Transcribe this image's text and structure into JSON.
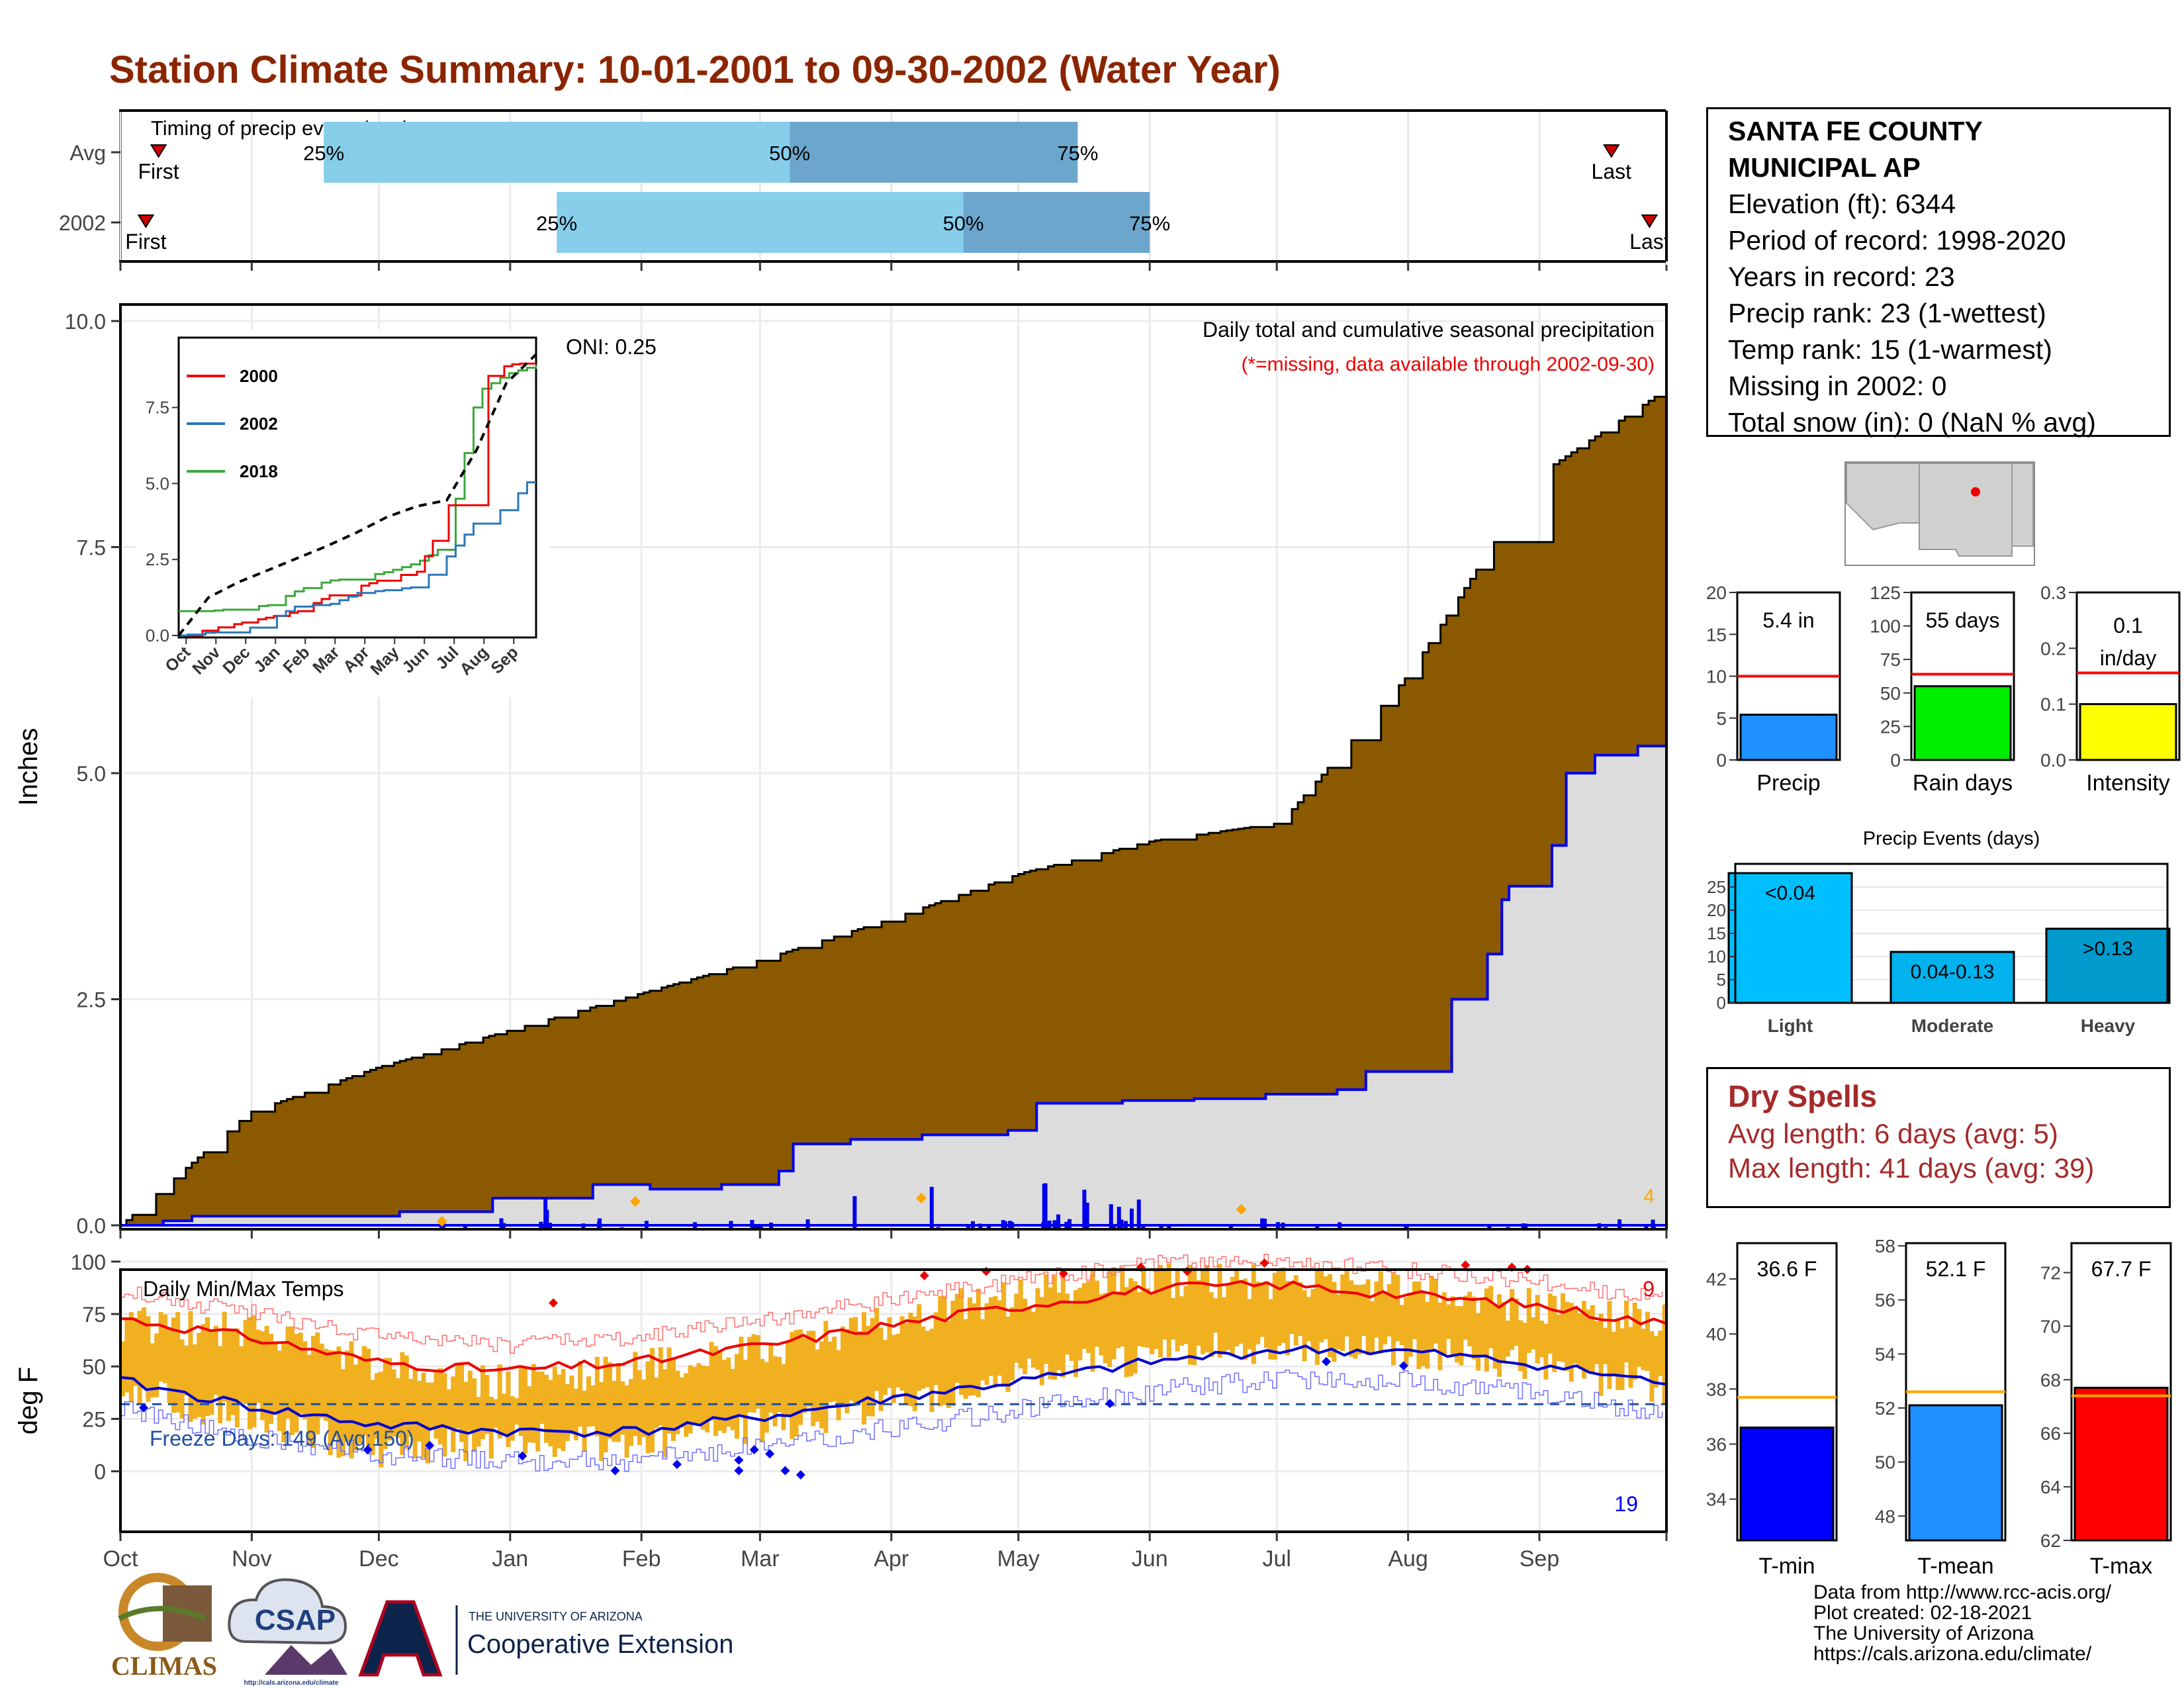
{
  "title": "Station Climate Summary: 10-01-2001 to 09-30-2002 (Water Year)",
  "station": {
    "name_line1": "SANTA FE COUNTY",
    "name_line2": "MUNICIPAL AP",
    "elevation": "Elevation (ft): 6344",
    "period": "Period of record: 1998-2020",
    "years": "Years in record: 23",
    "precip_rank": "Precip rank: 23 (1-wettest)",
    "temp_rank": "Temp rank: 15 (1-warmest)",
    "missing": "Missing in 2002: 0",
    "snow": "Total snow (in): 0 (NaN % avg)"
  },
  "timing": {
    "label": "Timing of precip events/totals",
    "rows": [
      "Avg",
      "2002"
    ],
    "first": "First",
    "last": "Last",
    "p25": "25%",
    "p50": "50%",
    "p75": "75%",
    "colors": {
      "light": "#87ceeb",
      "dark": "#6ca6cd",
      "marker": "#cc0000"
    }
  },
  "precip_panel": {
    "ylabel": "Inches",
    "yticks": [
      "0.0",
      "2.5",
      "5.0",
      "7.5",
      "10.0"
    ],
    "ylim": [
      0,
      10
    ],
    "caption": "Daily total and cumulative seasonal precipitation",
    "note": "(*=missing, data available through 2002-09-30)",
    "oni": "ONI: 0.25",
    "extreme_count": "4",
    "colors": {
      "avg_fill": "#8b5a00",
      "year_fill": "#dcdcdc",
      "year_line": "#0000ee",
      "bars": "#0000ee",
      "extreme": "#ffa500"
    }
  },
  "months": [
    "Oct",
    "Nov",
    "Dec",
    "Jan",
    "Feb",
    "Mar",
    "Apr",
    "May",
    "Jun",
    "Jul",
    "Aug",
    "Sep"
  ],
  "inset": {
    "yticks": [
      "0.0",
      "2.5",
      "5.0",
      "7.5"
    ],
    "legend": [
      {
        "name": "2000",
        "color": "#ee0000"
      },
      {
        "name": "2002",
        "color": "#2b78b8"
      },
      {
        "name": "2018",
        "color": "#3ca83c"
      }
    ]
  },
  "temp_panel": {
    "ylabel": "deg F",
    "label": "Daily Min/Max Temps",
    "yticks": [
      "0",
      "25",
      "50",
      "75",
      "100"
    ],
    "ylim": [
      -20,
      105
    ],
    "freeze": "Freeze Days: 149 (Avg:150)",
    "hot_count": "9",
    "cold_count": "19",
    "colors": {
      "bars": "#f0b020",
      "tmax_avg": "#ee0000",
      "tmin_avg": "#0000cc",
      "freeze_line": "#1f4e9e"
    }
  },
  "bars_small": [
    {
      "name": "Precip",
      "value_label": "5.4 in",
      "value": 5.4,
      "avg": 10.0,
      "yticks": [
        "0",
        "5",
        "10",
        "15",
        "20"
      ],
      "ymax": 20,
      "color": "#1e90ff",
      "avg_color": "#ff0000"
    },
    {
      "name": "Rain days",
      "value_label": "55 days",
      "value": 55,
      "avg": 64,
      "yticks": [
        "0",
        "25",
        "50",
        "75",
        "100",
        "125"
      ],
      "ymax": 125,
      "color": "#00ee00",
      "avg_color": "#ff0000"
    },
    {
      "name": "Intensity",
      "value_label_1": "0.1",
      "value_label_2": "in/day",
      "value": 0.1,
      "avg": 0.156,
      "yticks": [
        "0.0",
        "0.1",
        "0.2",
        "0.3"
      ],
      "ymax": 0.3,
      "color": "#ffff00",
      "avg_color": "#ff0000"
    }
  ],
  "precip_events": {
    "title": "Precip Events (days)",
    "yticks": [
      "0",
      "5",
      "10",
      "15",
      "20",
      "25"
    ],
    "categories": [
      "Light",
      "Moderate",
      "Heavy"
    ],
    "bar_labels": [
      "<0.04",
      "0.04-0.13",
      ">0.13"
    ],
    "values": [
      28,
      11,
      16
    ],
    "colors": [
      "#00bfff",
      "#00b2ee",
      "#009acd"
    ]
  },
  "dry_spells": {
    "title": "Dry Spells",
    "avg_line": "Avg length: 6 days (avg: 5)",
    "max_line": "Max length: 41 days (avg: 39)"
  },
  "temp_bars": [
    {
      "name": "T-min",
      "value_label": "36.6 F",
      "value": 36.6,
      "avg": 37.7,
      "yticks": [
        "34",
        "36",
        "38",
        "40",
        "42"
      ],
      "ylim": [
        32.5,
        43.3
      ],
      "color": "#0000ff"
    },
    {
      "name": "T-mean",
      "value_label": "52.1 F",
      "value": 52.1,
      "avg": 52.6,
      "yticks": [
        "48",
        "50",
        "52",
        "54",
        "56",
        "58"
      ],
      "ylim": [
        47.1,
        58.1
      ],
      "color": "#1e90ff"
    },
    {
      "name": "T-max",
      "value_label": "67.7 F",
      "value": 67.7,
      "avg": 67.4,
      "yticks": [
        "62",
        "64",
        "66",
        "68",
        "70",
        "72"
      ],
      "ylim": [
        62,
        73.1
      ],
      "color": "#ff0000"
    }
  ],
  "credits": [
    "Data from http://www.rcc-acis.org/",
    "Plot created: 02-18-2021",
    "The University of Arizona",
    "https://cals.arizona.edu/climate/"
  ],
  "logos": {
    "climas": "CLIMAS",
    "csap": "CSAP",
    "csap_url": "http://cals.arizona.edu/climate",
    "ua_small": "THE UNIVERSITY OF ARIZONA",
    "ua_big": "Cooperative Extension"
  },
  "chart_data": [
    {
      "type": "area",
      "title": "Daily total and cumulative seasonal precipitation",
      "ylabel": "Inches",
      "ylim": [
        0,
        10
      ],
      "x": [
        "Oct",
        "Nov",
        "Dec",
        "Jan",
        "Feb",
        "Mar",
        "Apr",
        "May",
        "Jun",
        "Jul",
        "Aug",
        "Sep",
        "Oct"
      ],
      "series": [
        {
          "name": "Avg",
          "values": [
            0.0,
            1.25,
            1.75,
            2.15,
            2.55,
            2.95,
            3.4,
            3.9,
            4.25,
            4.45,
            6.1,
            8.3,
            9.25
          ]
        },
        {
          "name": "2002",
          "values": [
            0.0,
            0.1,
            0.1,
            0.45,
            0.95,
            1.0,
            1.35,
            1.4,
            1.45,
            1.7,
            3.0,
            3.75,
            5.4
          ]
        }
      ]
    },
    {
      "type": "line",
      "xlabel": "",
      "ylim": [
        0,
        10
      ],
      "x": [
        "Oct",
        "Nov",
        "Dec",
        "Jan",
        "Feb",
        "Mar",
        "Apr",
        "May",
        "Jun",
        "Jul",
        "Aug",
        "Sep",
        "Oct"
      ],
      "series": [
        {
          "name": "2000",
          "values": [
            0.0,
            0.2,
            0.4,
            0.6,
            0.8,
            1.3,
            1.6,
            1.9,
            2.1,
            4.0,
            8.3,
            8.9,
            9.0
          ]
        },
        {
          "name": "2002",
          "values": [
            0.0,
            0.1,
            0.1,
            0.5,
            1.0,
            1.0,
            1.4,
            1.5,
            1.6,
            2.6,
            3.8,
            4.2,
            5.4
          ]
        },
        {
          "name": "2018",
          "values": [
            0.8,
            0.8,
            0.9,
            1.0,
            1.5,
            1.8,
            1.9,
            2.1,
            2.4,
            3.0,
            8.0,
            8.6,
            8.9
          ]
        },
        {
          "name": "",
          "values": [
            0.0,
            1.25,
            1.75,
            2.15,
            2.55,
            2.95,
            3.4,
            3.9,
            4.25,
            4.45,
            6.1,
            8.3,
            9.25
          ]
        }
      ]
    },
    {
      "type": "bar",
      "title": "Daily Min/Max Temps",
      "ylabel": "deg F",
      "ylim": [
        -20,
        105
      ],
      "x": [
        "Oct",
        "Nov",
        "Dec",
        "Jan",
        "Feb",
        "Mar",
        "Apr",
        "May",
        "Jun",
        "Jul",
        "Aug",
        "Sep",
        "Oct"
      ],
      "series": [
        {
          "name": "Tmax avg",
          "values": [
            73,
            64,
            52,
            48,
            52,
            60,
            70,
            79,
            87,
            89,
            84,
            79,
            70
          ]
        },
        {
          "name": "Tmin avg",
          "values": [
            43,
            31,
            22,
            19,
            19,
            26,
            35,
            43,
            52,
            58,
            57,
            51,
            42
          ]
        },
        {
          "name": "Tmax",
          "values": [
            70,
            68,
            50,
            42,
            50,
            58,
            72,
            84,
            92,
            90,
            86,
            78,
            72
          ]
        },
        {
          "name": "Tmin",
          "values": [
            40,
            25,
            10,
            15,
            12,
            22,
            33,
            45,
            55,
            60,
            58,
            50,
            40
          ]
        }
      ]
    }
  ]
}
